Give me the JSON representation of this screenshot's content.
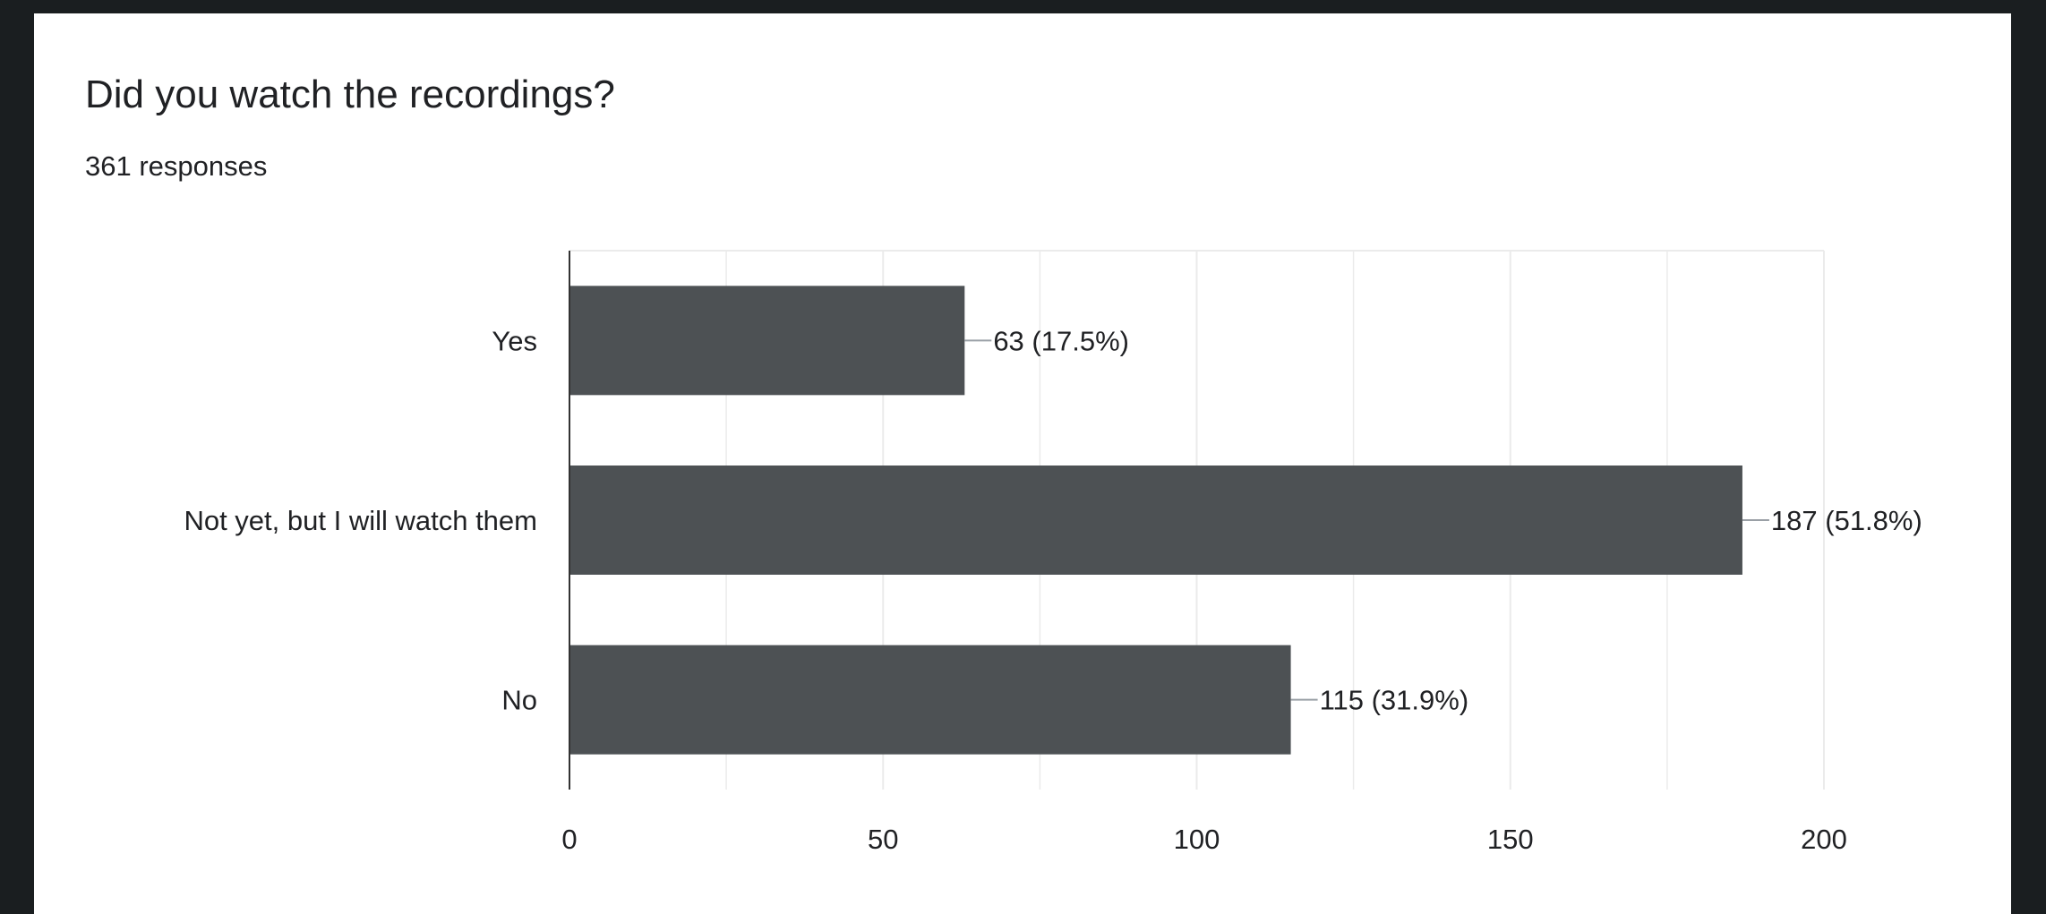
{
  "question": {
    "title": "Did you watch the recordings?",
    "responses": "361 responses"
  },
  "colors": {
    "bar": "#4d5154",
    "grid": "#ebebeb",
    "axis": "#333333",
    "text": "#202124"
  },
  "chart_data": {
    "type": "bar",
    "orientation": "horizontal",
    "categories": [
      "Yes",
      "Not yet, but I will watch them",
      "No"
    ],
    "values": [
      63,
      187,
      115
    ],
    "data_labels": [
      "63 (17.5%)",
      "187 (51.8%)",
      "115 (31.9%)"
    ],
    "xlim": [
      0,
      200
    ],
    "x_ticks": [
      0,
      50,
      100,
      150,
      200
    ],
    "title": "Did you watch the recordings?",
    "subtitle": "361 responses",
    "xlabel": "",
    "ylabel": "",
    "grid": true,
    "legend": "none"
  }
}
